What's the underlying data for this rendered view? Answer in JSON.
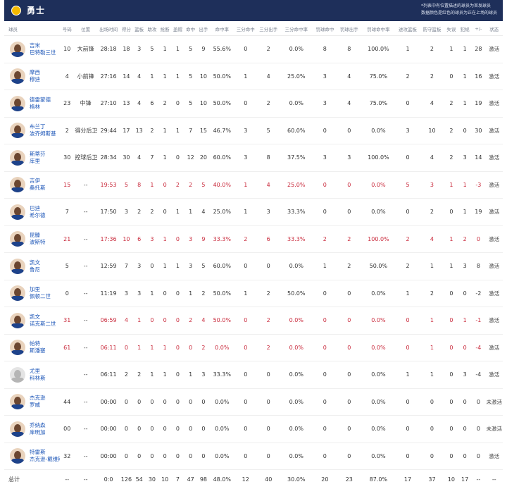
{
  "header": {
    "team_name": "勇士",
    "note_line1": "*列表中有位置描述的球员为首发球员",
    "note_line2": "数据颜色是红色的球员为正在上场的球员",
    "brand_color": "#1e2f5a",
    "highlight_color": "#c92a3c"
  },
  "columns": [
    "球员",
    "号码",
    "位置",
    "出场时间",
    "得分",
    "篮板",
    "助攻",
    "抢断",
    "盖帽",
    "命中",
    "出手",
    "命中率",
    "三分命中",
    "三分出手",
    "三分命中率",
    "罚球命中",
    "罚球出手",
    "罚球命中率",
    "进攻篮板",
    "防守篮板",
    "失误",
    "犯规",
    "+/-",
    "状态"
  ],
  "players": [
    {
      "name1": "吉米",
      "name2": "巴特勒三世",
      "num": "10",
      "pos": "大前锋",
      "min": "28:18",
      "pts": "18",
      "reb": "3",
      "ast": "5",
      "stl": "1",
      "blk": "1",
      "fgm": "5",
      "fga": "9",
      "fgp": "55.6%",
      "tpm": "0",
      "tpa": "2",
      "tpp": "0.0%",
      "ftm": "8",
      "fta": "8",
      "ftp": "100.0%",
      "oreb": "1",
      "dreb": "2",
      "tov": "1",
      "pf": "1",
      "pm": "28",
      "status": "激活",
      "on_court": false,
      "avatar": "player-avatar"
    },
    {
      "name1": "摩西",
      "name2": "穆迪",
      "num": "4",
      "pos": "小前锋",
      "min": "27:16",
      "pts": "14",
      "reb": "4",
      "ast": "1",
      "stl": "1",
      "blk": "1",
      "fgm": "5",
      "fga": "10",
      "fgp": "50.0%",
      "tpm": "1",
      "tpa": "4",
      "tpp": "25.0%",
      "ftm": "3",
      "fta": "4",
      "ftp": "75.0%",
      "oreb": "2",
      "dreb": "2",
      "tov": "0",
      "pf": "1",
      "pm": "16",
      "status": "激活",
      "on_court": false,
      "avatar": "player-avatar"
    },
    {
      "name1": "德雷蒙德",
      "name2": "格林",
      "num": "23",
      "pos": "中锋",
      "min": "27:10",
      "pts": "13",
      "reb": "4",
      "ast": "6",
      "stl": "2",
      "blk": "0",
      "fgm": "5",
      "fga": "10",
      "fgp": "50.0%",
      "tpm": "0",
      "tpa": "2",
      "tpp": "0.0%",
      "ftm": "3",
      "fta": "4",
      "ftp": "75.0%",
      "oreb": "0",
      "dreb": "4",
      "tov": "2",
      "pf": "1",
      "pm": "19",
      "status": "激活",
      "on_court": false,
      "avatar": "player-avatar"
    },
    {
      "name1": "布兰丁",
      "name2": "波齐姆斯基",
      "num": "2",
      "pos": "得分后卫",
      "min": "29:44",
      "pts": "17",
      "reb": "13",
      "ast": "2",
      "stl": "1",
      "blk": "1",
      "fgm": "7",
      "fga": "15",
      "fgp": "46.7%",
      "tpm": "3",
      "tpa": "5",
      "tpp": "60.0%",
      "ftm": "0",
      "fta": "0",
      "ftp": "0.0%",
      "oreb": "3",
      "dreb": "10",
      "tov": "2",
      "pf": "0",
      "pm": "30",
      "status": "激活",
      "on_court": false,
      "avatar": "player-avatar"
    },
    {
      "name1": "斯蒂芬",
      "name2": "库里",
      "num": "30",
      "pos": "控球后卫",
      "min": "28:34",
      "pts": "30",
      "reb": "4",
      "ast": "7",
      "stl": "1",
      "blk": "0",
      "fgm": "12",
      "fga": "20",
      "fgp": "60.0%",
      "tpm": "3",
      "tpa": "8",
      "tpp": "37.5%",
      "ftm": "3",
      "fta": "3",
      "ftp": "100.0%",
      "oreb": "0",
      "dreb": "4",
      "tov": "2",
      "pf": "3",
      "pm": "14",
      "status": "激活",
      "on_court": false,
      "avatar": "player-avatar"
    },
    {
      "name1": "吉伊",
      "name2": "桑托斯",
      "num": "15",
      "pos": "--",
      "min": "19:53",
      "pts": "5",
      "reb": "8",
      "ast": "1",
      "stl": "0",
      "blk": "2",
      "fgm": "2",
      "fga": "5",
      "fgp": "40.0%",
      "tpm": "1",
      "tpa": "4",
      "tpp": "25.0%",
      "ftm": "0",
      "fta": "0",
      "ftp": "0.0%",
      "oreb": "5",
      "dreb": "3",
      "tov": "1",
      "pf": "1",
      "pm": "-3",
      "status": "激活",
      "on_court": true,
      "avatar": "player-avatar"
    },
    {
      "name1": "巴迪",
      "name2": "希尔德",
      "num": "7",
      "pos": "--",
      "min": "17:50",
      "pts": "3",
      "reb": "2",
      "ast": "2",
      "stl": "0",
      "blk": "1",
      "fgm": "1",
      "fga": "4",
      "fgp": "25.0%",
      "tpm": "1",
      "tpa": "3",
      "tpp": "33.3%",
      "ftm": "0",
      "fta": "0",
      "ftp": "0.0%",
      "oreb": "0",
      "dreb": "2",
      "tov": "0",
      "pf": "1",
      "pm": "19",
      "status": "激活",
      "on_court": false,
      "avatar": "player-avatar"
    },
    {
      "name1": "昆滕",
      "name2": "波斯特",
      "num": "21",
      "pos": "--",
      "min": "17:36",
      "pts": "10",
      "reb": "6",
      "ast": "3",
      "stl": "1",
      "blk": "0",
      "fgm": "3",
      "fga": "9",
      "fgp": "33.3%",
      "tpm": "2",
      "tpa": "6",
      "tpp": "33.3%",
      "ftm": "2",
      "fta": "2",
      "ftp": "100.0%",
      "oreb": "2",
      "dreb": "4",
      "tov": "1",
      "pf": "2",
      "pm": "0",
      "status": "激活",
      "on_court": true,
      "avatar": "player-avatar"
    },
    {
      "name1": "凯文",
      "name2": "鲁尼",
      "num": "5",
      "pos": "--",
      "min": "12:59",
      "pts": "7",
      "reb": "3",
      "ast": "0",
      "stl": "1",
      "blk": "1",
      "fgm": "3",
      "fga": "5",
      "fgp": "60.0%",
      "tpm": "0",
      "tpa": "0",
      "tpp": "0.0%",
      "ftm": "1",
      "fta": "2",
      "ftp": "50.0%",
      "oreb": "2",
      "dreb": "1",
      "tov": "1",
      "pf": "3",
      "pm": "8",
      "status": "激活",
      "on_court": false,
      "avatar": "player-avatar"
    },
    {
      "name1": "加里",
      "name2": "佩顿二世",
      "num": "0",
      "pos": "--",
      "min": "11:19",
      "pts": "3",
      "reb": "3",
      "ast": "1",
      "stl": "0",
      "blk": "0",
      "fgm": "1",
      "fga": "2",
      "fgp": "50.0%",
      "tpm": "1",
      "tpa": "2",
      "tpp": "50.0%",
      "ftm": "0",
      "fta": "0",
      "ftp": "0.0%",
      "oreb": "1",
      "dreb": "2",
      "tov": "0",
      "pf": "0",
      "pm": "-2",
      "status": "激活",
      "on_court": false,
      "avatar": "player-avatar"
    },
    {
      "name1": "凯文",
      "name2": "诺克斯二世",
      "num": "31",
      "pos": "--",
      "min": "06:59",
      "pts": "4",
      "reb": "1",
      "ast": "0",
      "stl": "0",
      "blk": "0",
      "fgm": "2",
      "fga": "4",
      "fgp": "50.0%",
      "tpm": "0",
      "tpa": "2",
      "tpp": "0.0%",
      "ftm": "0",
      "fta": "0",
      "ftp": "0.0%",
      "oreb": "0",
      "dreb": "1",
      "tov": "0",
      "pf": "1",
      "pm": "-1",
      "status": "激活",
      "on_court": true,
      "avatar": "player-avatar"
    },
    {
      "name1": "帕特",
      "name2": "斯潘塞",
      "num": "61",
      "pos": "--",
      "min": "06:11",
      "pts": "0",
      "reb": "1",
      "ast": "1",
      "stl": "1",
      "blk": "0",
      "fgm": "0",
      "fga": "2",
      "fgp": "0.0%",
      "tpm": "0",
      "tpa": "2",
      "tpp": "0.0%",
      "ftm": "0",
      "fta": "0",
      "ftp": "0.0%",
      "oreb": "0",
      "dreb": "1",
      "tov": "0",
      "pf": "0",
      "pm": "-4",
      "status": "激活",
      "on_court": true,
      "avatar": "player-avatar"
    },
    {
      "name1": "尤里",
      "name2": "科林斯",
      "num": "",
      "pos": "--",
      "min": "06:11",
      "pts": "2",
      "reb": "2",
      "ast": "1",
      "stl": "1",
      "blk": "0",
      "fgm": "1",
      "fga": "3",
      "fgp": "33.3%",
      "tpm": "0",
      "tpa": "0",
      "tpp": "0.0%",
      "ftm": "0",
      "fta": "0",
      "ftp": "0.0%",
      "oreb": "1",
      "dreb": "1",
      "tov": "0",
      "pf": "3",
      "pm": "-4",
      "status": "激活",
      "on_court": false,
      "avatar": "placeholder-avatar"
    },
    {
      "name1": "杰克逊",
      "name2": "罗威",
      "num": "44",
      "pos": "--",
      "min": "00:00",
      "pts": "0",
      "reb": "0",
      "ast": "0",
      "stl": "0",
      "blk": "0",
      "fgm": "0",
      "fga": "0",
      "fgp": "0.0%",
      "tpm": "0",
      "tpa": "0",
      "tpp": "0.0%",
      "ftm": "0",
      "fta": "0",
      "ftp": "0.0%",
      "oreb": "0",
      "dreb": "0",
      "tov": "0",
      "pf": "0",
      "pm": "0",
      "status": "未激活",
      "on_court": false,
      "avatar": "player-avatar"
    },
    {
      "name1": "乔纳森",
      "name2": "库明加",
      "num": "00",
      "pos": "--",
      "min": "00:00",
      "pts": "0",
      "reb": "0",
      "ast": "0",
      "stl": "0",
      "blk": "0",
      "fgm": "0",
      "fga": "0",
      "fgp": "0.0%",
      "tpm": "0",
      "tpa": "0",
      "tpp": "0.0%",
      "ftm": "0",
      "fta": "0",
      "ftp": "0.0%",
      "oreb": "0",
      "dreb": "0",
      "tov": "0",
      "pf": "0",
      "pm": "0",
      "status": "未激活",
      "on_court": false,
      "avatar": "player-avatar"
    },
    {
      "name1": "特雷斯",
      "name2": "杰克逊-戴维斯",
      "num": "32",
      "pos": "--",
      "min": "00:00",
      "pts": "0",
      "reb": "0",
      "ast": "0",
      "stl": "0",
      "blk": "0",
      "fgm": "0",
      "fga": "0",
      "fgp": "0.0%",
      "tpm": "0",
      "tpa": "0",
      "tpp": "0.0%",
      "ftm": "0",
      "fta": "0",
      "ftp": "0.0%",
      "oreb": "0",
      "dreb": "0",
      "tov": "0",
      "pf": "0",
      "pm": "0",
      "status": "激活",
      "on_court": false,
      "avatar": "player-avatar"
    }
  ],
  "total": [
    "总计",
    "--",
    "--",
    "0:0",
    "126",
    "54",
    "30",
    "10",
    "7",
    "47",
    "98",
    "48.0%",
    "12",
    "40",
    "30.0%",
    "20",
    "23",
    "87.0%",
    "17",
    "37",
    "10",
    "17",
    "--",
    "--"
  ]
}
